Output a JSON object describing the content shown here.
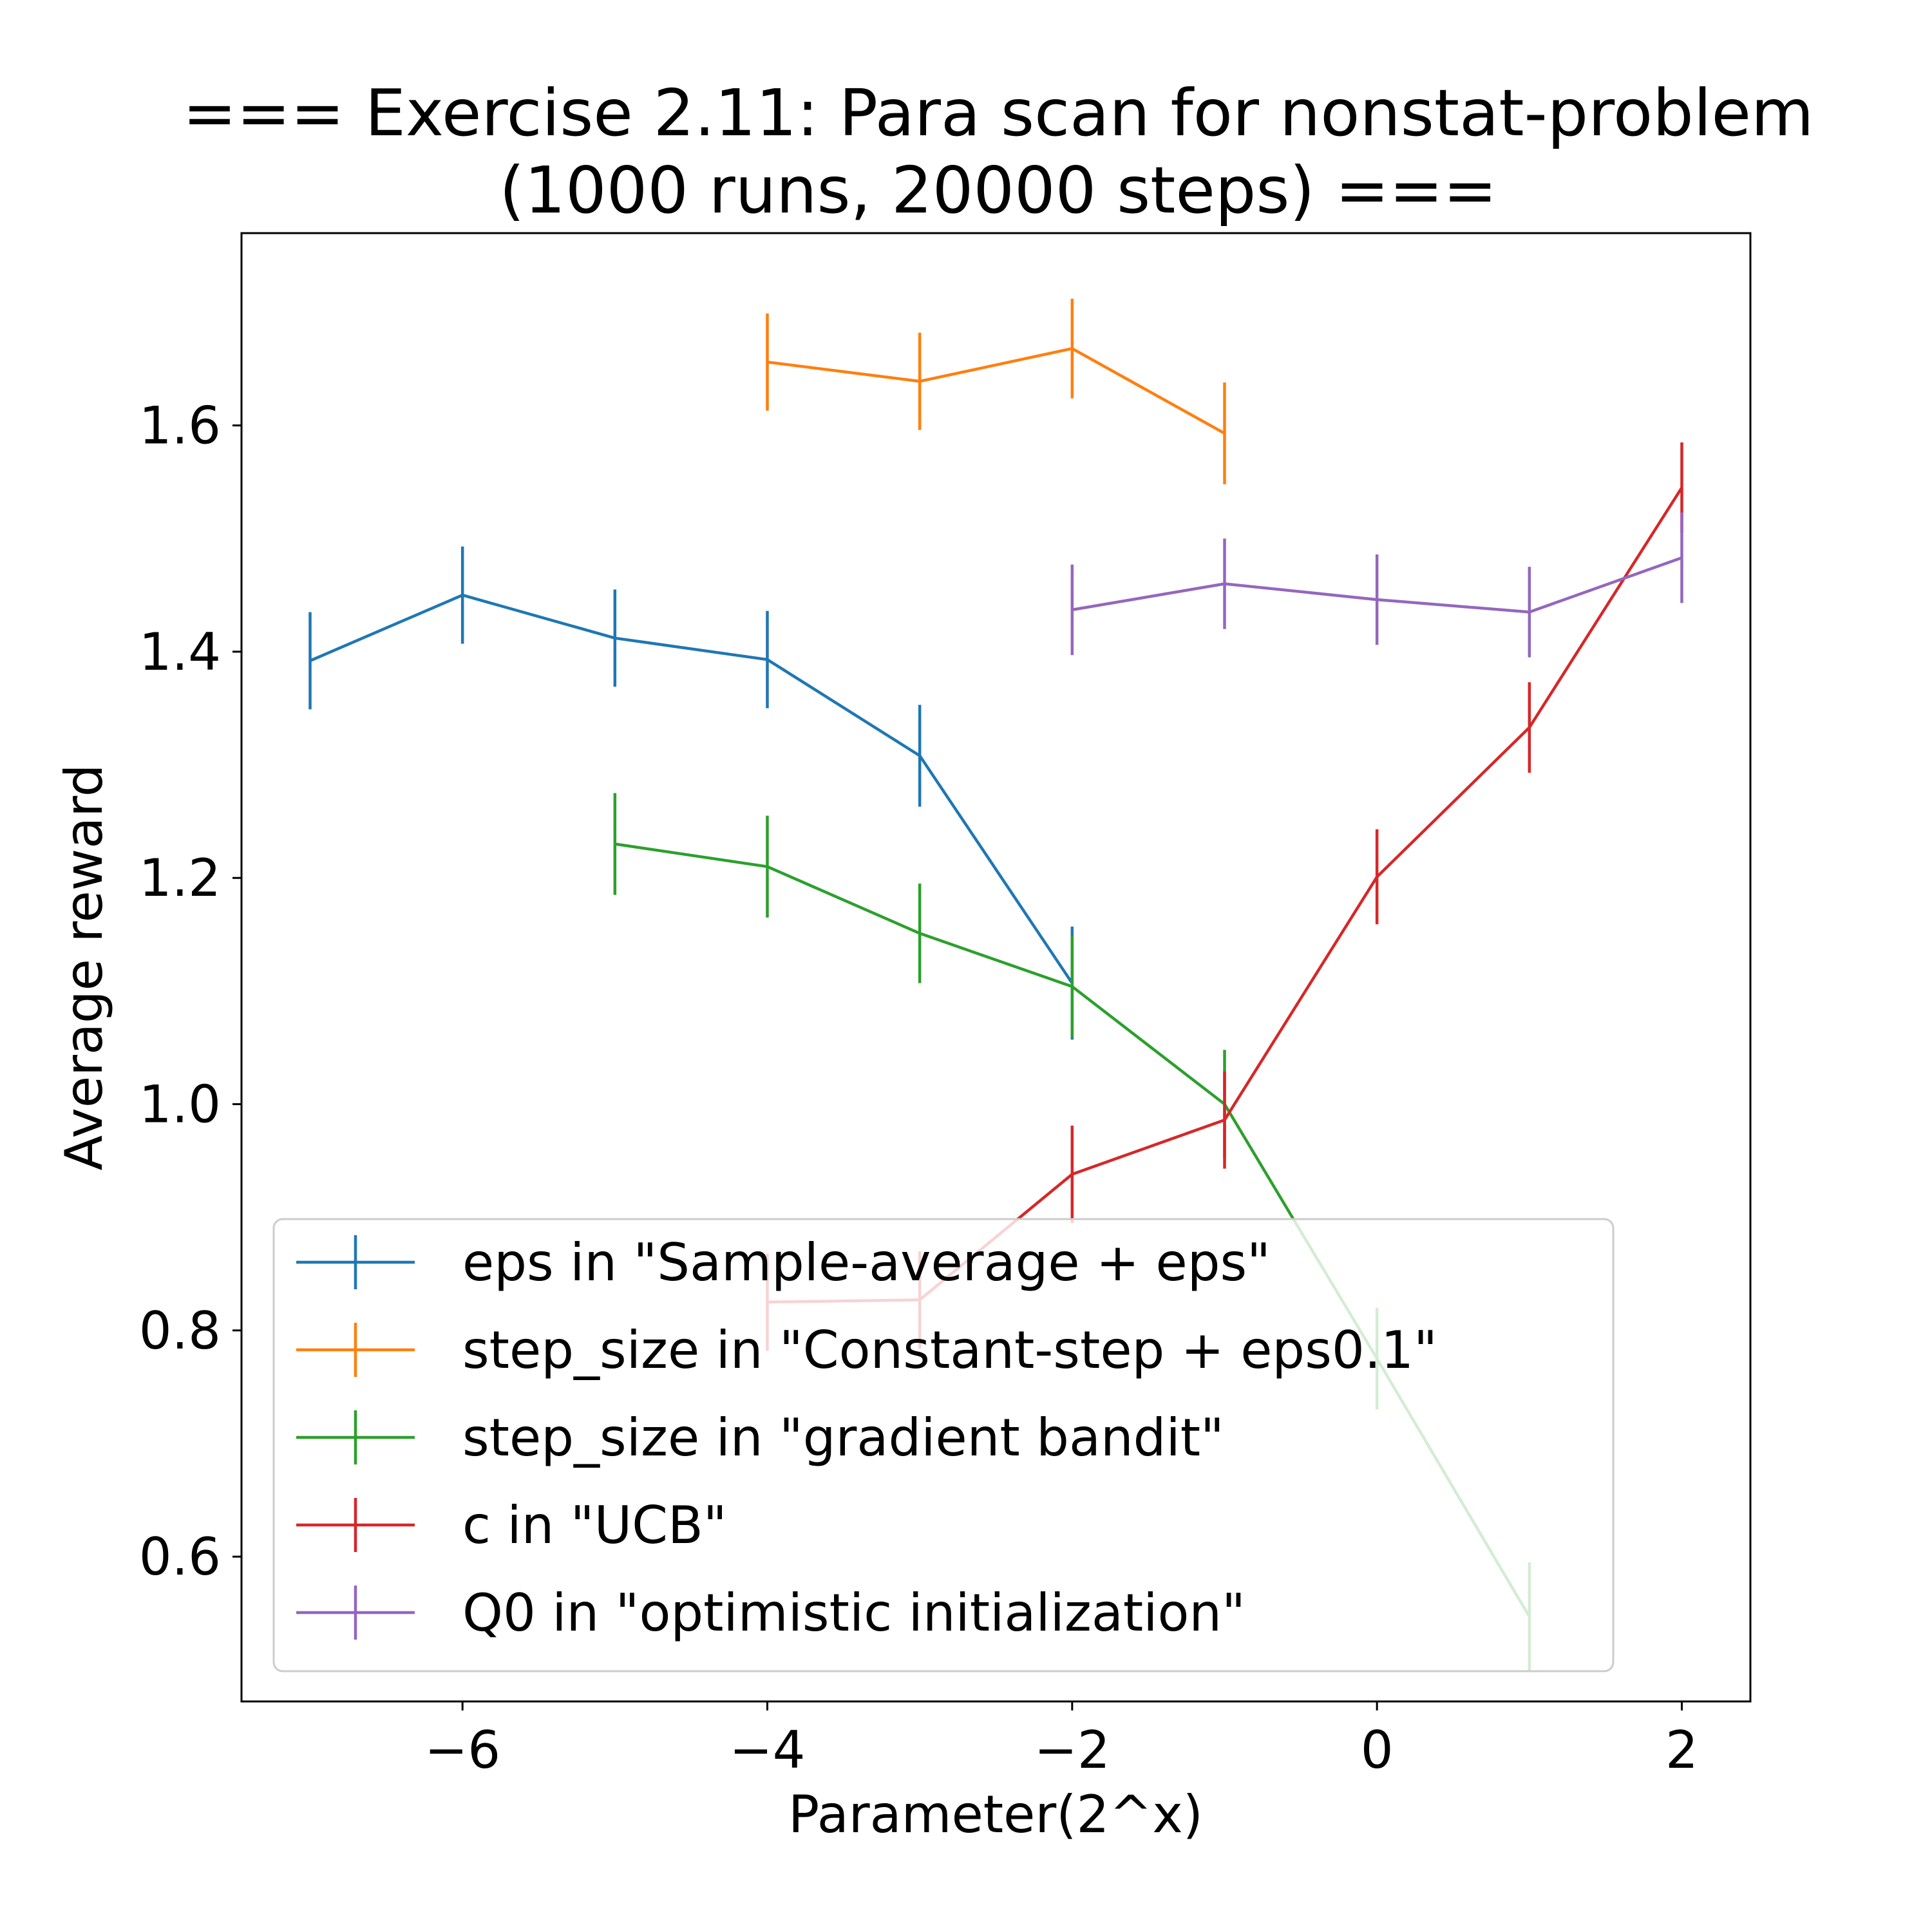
{
  "chart_data": {
    "type": "line",
    "title_line1": "=== Exercise 2.11: Para scan for nonstat-problem",
    "title_line2": "(1000 runs, 20000 steps) ===",
    "xlabel": "Parameter(2^x)",
    "ylabel": "Average reward",
    "xlim": [
      -7.45,
      2.45
    ],
    "ylim": [
      0.472,
      1.77
    ],
    "xticks": [
      -6,
      -4,
      -2,
      0,
      2
    ],
    "xtick_labels": [
      "−6",
      "−4",
      "−2",
      "0",
      "2"
    ],
    "yticks": [
      0.6,
      0.8,
      1.0,
      1.2,
      1.4,
      1.6
    ],
    "ytick_labels": [
      "0.6",
      "0.8",
      "1.0",
      "1.2",
      "1.4",
      "1.6"
    ],
    "legend_position": "lower-left",
    "series": [
      {
        "name": "eps in \"Sample-average + eps\"",
        "color": "#1f77b4",
        "x": [
          -7,
          -6,
          -5,
          -4,
          -3,
          -2
        ],
        "y": [
          1.392,
          1.45,
          1.412,
          1.393,
          1.308,
          1.107
        ],
        "err": [
          0.043,
          0.043,
          0.043,
          0.043,
          0.045,
          0.05
        ]
      },
      {
        "name": "step_size in \"Constant-step + eps0.1\"",
        "color": "#ff7f0e",
        "x": [
          -4,
          -3,
          -2,
          -1
        ],
        "y": [
          1.656,
          1.639,
          1.668,
          1.593
        ],
        "err": [
          0.043,
          0.043,
          0.044,
          0.045
        ]
      },
      {
        "name": "step_size in \"gradient bandit\"",
        "color": "#2ca02c",
        "x": [
          -5,
          -4,
          -3,
          -2,
          -1,
          0,
          1
        ],
        "y": [
          1.23,
          1.21,
          1.151,
          1.104,
          1.0,
          0.775,
          0.547
        ],
        "err": [
          0.045,
          0.045,
          0.044,
          0.045,
          0.048,
          0.045,
          0.048
        ]
      },
      {
        "name": "c in \"UCB\"",
        "color": "#d62728",
        "x": [
          -4,
          -3,
          -2,
          -1,
          0,
          1,
          2
        ],
        "y": [
          0.825,
          0.827,
          0.938,
          0.986,
          1.201,
          1.333,
          1.545
        ],
        "err": [
          0.043,
          0.043,
          0.043,
          0.043,
          0.042,
          0.04,
          0.04
        ]
      },
      {
        "name": "Q0 in \"optimistic initialization\"",
        "color": "#9467bd",
        "x": [
          -2,
          -1,
          0,
          1,
          2
        ],
        "y": [
          1.437,
          1.46,
          1.446,
          1.435,
          1.483
        ],
        "err": [
          0.04,
          0.04,
          0.04,
          0.04,
          0.04
        ]
      }
    ]
  }
}
